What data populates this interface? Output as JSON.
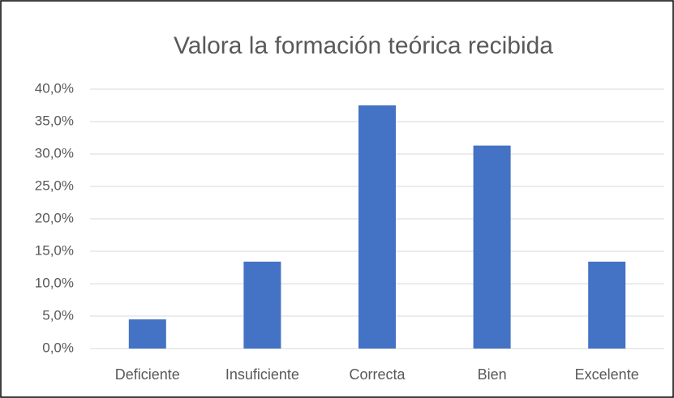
{
  "chart_data": {
    "type": "bar",
    "title": "Valora la formación teórica recibida",
    "categories": [
      "Deficiente",
      "Insuficiente",
      "Correcta",
      "Bien",
      "Excelente"
    ],
    "values": [
      4.5,
      13.4,
      37.5,
      31.3,
      13.4
    ],
    "color": "#4472c4",
    "ylim": [
      0,
      40
    ],
    "yticks": [
      {
        "value": 0,
        "label": "0,0%"
      },
      {
        "value": 5,
        "label": "5,0%"
      },
      {
        "value": 10,
        "label": "10,0%"
      },
      {
        "value": 15,
        "label": "15,0%"
      },
      {
        "value": 20,
        "label": "20,0%"
      },
      {
        "value": 25,
        "label": "25,0%"
      },
      {
        "value": 30,
        "label": "30,0%"
      },
      {
        "value": 35,
        "label": "35,0%"
      },
      {
        "value": 40,
        "label": "40,0%"
      }
    ],
    "grid": true
  }
}
